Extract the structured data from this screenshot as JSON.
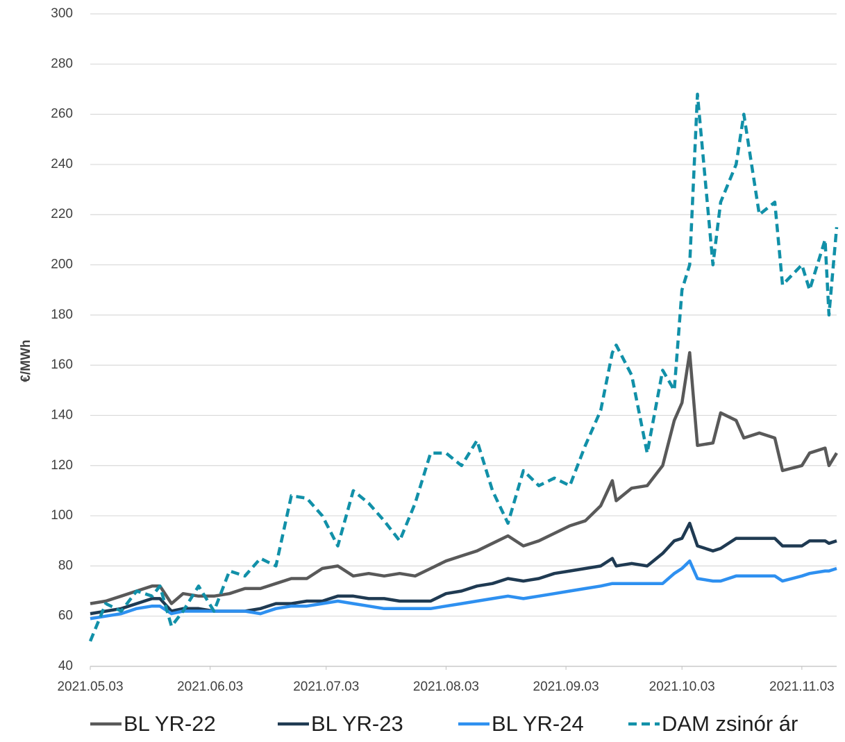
{
  "chart_data": {
    "type": "line",
    "y_label": "€/MWh",
    "x": [
      "2021.05.03",
      "2021.05.07",
      "2021.05.11",
      "2021.05.15",
      "2021.05.19",
      "2021.05.21",
      "2021.05.24",
      "2021.05.27",
      "2021.05.31",
      "2021.06.04",
      "2021.06.08",
      "2021.06.12",
      "2021.06.16",
      "2021.06.20",
      "2021.06.24",
      "2021.06.28",
      "2021.07.02",
      "2021.07.06",
      "2021.07.10",
      "2021.07.14",
      "2021.07.18",
      "2021.07.22",
      "2021.07.26",
      "2021.07.30",
      "2021.08.03",
      "2021.08.07",
      "2021.08.11",
      "2021.08.15",
      "2021.08.19",
      "2021.08.23",
      "2021.08.27",
      "2021.08.31",
      "2021.09.04",
      "2021.09.08",
      "2021.09.12",
      "2021.09.15",
      "2021.09.16",
      "2021.09.20",
      "2021.09.24",
      "2021.09.28",
      "2021.10.01",
      "2021.10.03",
      "2021.10.05",
      "2021.10.07",
      "2021.10.11",
      "2021.10.13",
      "2021.10.17",
      "2021.10.19",
      "2021.10.23",
      "2021.10.27",
      "2021.10.29",
      "2021.11.03",
      "2021.11.05",
      "2021.11.09",
      "2021.11.10",
      "2021.11.12"
    ],
    "series": [
      {
        "name": "BL YR-22",
        "color": "#595959",
        "dashed": false,
        "values": [
          65,
          66,
          68,
          70,
          72,
          72,
          65,
          69,
          68,
          68,
          69,
          71,
          71,
          73,
          75,
          75,
          79,
          80,
          76,
          77,
          76,
          77,
          76,
          79,
          82,
          84,
          86,
          89,
          92,
          88,
          90,
          93,
          96,
          98,
          104,
          114,
          106,
          111,
          112,
          120,
          138,
          145,
          165,
          128,
          129,
          141,
          138,
          131,
          133,
          131,
          118,
          120,
          125,
          127,
          120,
          125
        ]
      },
      {
        "name": "BL YR-23",
        "color": "#1f3a52",
        "dashed": false,
        "values": [
          61,
          62,
          63,
          65,
          67,
          67,
          62,
          63,
          63,
          62,
          62,
          62,
          63,
          65,
          65,
          66,
          66,
          68,
          68,
          67,
          67,
          66,
          66,
          66,
          69,
          70,
          72,
          73,
          75,
          74,
          75,
          77,
          78,
          79,
          80,
          83,
          80,
          81,
          80,
          85,
          90,
          91,
          97,
          88,
          86,
          87,
          91,
          91,
          91,
          91,
          88,
          88,
          90,
          90,
          89,
          90
        ]
      },
      {
        "name": "BL YR-24",
        "color": "#2e90f0",
        "dashed": false,
        "values": [
          59,
          60,
          61,
          63,
          64,
          64,
          61,
          62,
          62,
          62,
          62,
          62,
          61,
          63,
          64,
          64,
          65,
          66,
          65,
          64,
          63,
          63,
          63,
          63,
          64,
          65,
          66,
          67,
          68,
          67,
          68,
          69,
          70,
          71,
          72,
          73,
          73,
          73,
          73,
          73,
          77,
          79,
          82,
          75,
          74,
          74,
          76,
          76,
          76,
          76,
          74,
          76,
          77,
          78,
          78,
          79
        ]
      },
      {
        "name": "DAM zsinór ár",
        "color": "#1190a8",
        "dashed": true,
        "values": [
          50,
          65,
          62,
          70,
          68,
          72,
          56,
          62,
          72,
          62,
          78,
          76,
          83,
          80,
          108,
          107,
          100,
          88,
          110,
          105,
          98,
          90,
          105,
          125,
          125,
          120,
          130,
          110,
          97,
          118,
          112,
          115,
          112,
          128,
          142,
          165,
          168,
          156,
          125,
          158,
          150,
          190,
          200,
          268,
          200,
          225,
          240,
          260,
          220,
          225,
          192,
          200,
          190,
          210,
          180,
          215
        ]
      }
    ],
    "xlim": [
      "2021.05.03",
      "2021.11.12"
    ],
    "xticks": [
      "2021.05.03",
      "2021.06.03",
      "2021.07.03",
      "2021.08.03",
      "2021.09.03",
      "2021.10.03",
      "2021.11.03"
    ],
    "ylim": [
      40,
      300
    ],
    "yticks": [
      40,
      60,
      80,
      100,
      120,
      140,
      160,
      180,
      200,
      220,
      240,
      260,
      280,
      300
    ],
    "grid": true,
    "legend": "bottom"
  }
}
